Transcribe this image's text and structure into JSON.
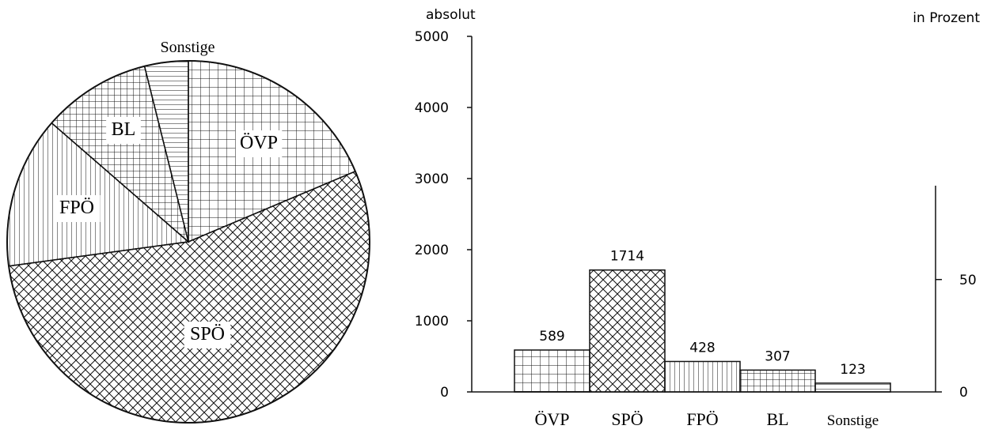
{
  "chart_data": [
    {
      "type": "pie",
      "categories": [
        "ÖVP",
        "SPÖ",
        "FPÖ",
        "BL",
        "Sonstige"
      ],
      "values": [
        589,
        1714,
        428,
        307,
        123
      ],
      "slice_labels": [
        "ÖVP",
        "SPÖ",
        "FPÖ",
        "BL",
        "Sonstige"
      ],
      "patterns": [
        "grid",
        "crosshatch",
        "vertical",
        "fine-grid",
        "horizontal"
      ]
    },
    {
      "type": "bar",
      "categories": [
        "ÖVP",
        "SPÖ",
        "FPÖ",
        "BL",
        "Sonstige"
      ],
      "values": [
        589,
        1714,
        428,
        307,
        123
      ],
      "value_labels": [
        "589",
        "1714",
        "428",
        "307",
        "123"
      ],
      "ylabel_left": "absolut",
      "ylabel_right": "in Prozent",
      "ylim": [
        0,
        5000
      ],
      "yticks_left": [
        "0",
        "1000",
        "2000",
        "3000",
        "4000",
        "5000"
      ],
      "right_axis_range": [
        0,
        70
      ],
      "yticks_right": [
        {
          "value": 0,
          "label": "0"
        },
        {
          "value": 50,
          "label": "50"
        }
      ],
      "patterns": [
        "grid",
        "crosshatch",
        "vertical",
        "fine-grid",
        "horizontal"
      ],
      "grid": false
    }
  ]
}
